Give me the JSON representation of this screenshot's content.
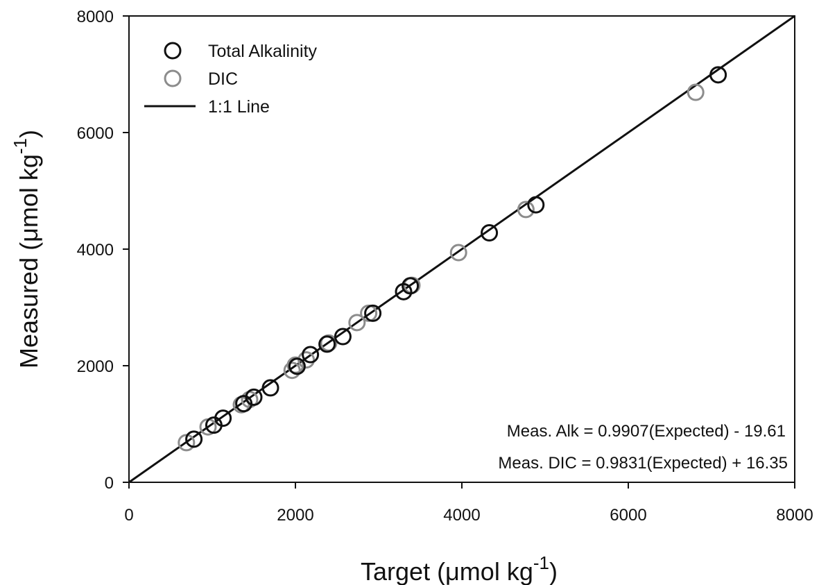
{
  "chart_data": {
    "type": "scatter",
    "xlabel": "Target (μmol kg",
    "xlabel_sup": "-1",
    "xlabel_end": ")",
    "ylabel": "Measured (μmol kg",
    "ylabel_sup": "-1",
    "ylabel_end": ")",
    "xlim": [
      0,
      8000
    ],
    "ylim": [
      0,
      8000
    ],
    "xticks": [
      "0",
      "2000",
      "4000",
      "6000",
      "8000"
    ],
    "yticks": [
      "0",
      "2000",
      "4000",
      "6000",
      "8000"
    ],
    "grid": false,
    "legend_position": "top-left",
    "series": [
      {
        "name": "Total Alkalinity",
        "color": "#111111",
        "marker": "open-circle",
        "points": [
          [
            780,
            740
          ],
          [
            1020,
            980
          ],
          [
            1130,
            1100
          ],
          [
            1380,
            1350
          ],
          [
            1500,
            1460
          ],
          [
            1700,
            1620
          ],
          [
            2020,
            1990
          ],
          [
            2180,
            2190
          ],
          [
            2380,
            2370
          ],
          [
            2570,
            2500
          ],
          [
            2930,
            2900
          ],
          [
            3300,
            3270
          ],
          [
            3380,
            3370
          ],
          [
            4330,
            4280
          ],
          [
            4890,
            4760
          ],
          [
            7080,
            6990
          ]
        ]
      },
      {
        "name": "DIC",
        "color": "#8c8c8c",
        "marker": "open-circle",
        "points": [
          [
            690,
            680
          ],
          [
            950,
            950
          ],
          [
            1350,
            1330
          ],
          [
            1450,
            1420
          ],
          [
            1960,
            1920
          ],
          [
            2000,
            2010
          ],
          [
            2130,
            2100
          ],
          [
            2400,
            2390
          ],
          [
            2740,
            2740
          ],
          [
            2880,
            2900
          ],
          [
            3400,
            3380
          ],
          [
            3960,
            3940
          ],
          [
            4770,
            4680
          ],
          [
            6810,
            6690
          ]
        ]
      },
      {
        "name": "1:1 Line",
        "color": "#111111",
        "type": "line",
        "points": [
          [
            0,
            0
          ],
          [
            8000,
            8000
          ]
        ]
      }
    ],
    "annotations": [
      "Meas. Alk = 0.9907(Expected) - 19.61",
      "Meas. DIC = 0.9831(Expected) + 16.35"
    ]
  }
}
